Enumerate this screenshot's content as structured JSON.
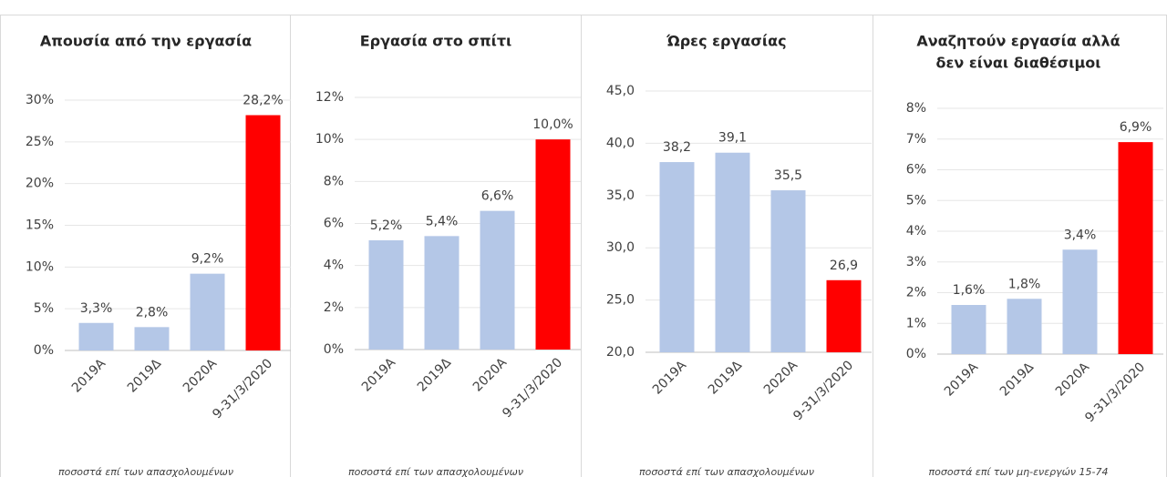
{
  "chart_data": [
    {
      "type": "bar",
      "title": [
        "Απουσία από την εργασία"
      ],
      "categories": [
        "2019Α",
        "2019Δ",
        "2020Α",
        "9-31/3/2020"
      ],
      "values": [
        3.3,
        2.8,
        9.2,
        28.2
      ],
      "value_labels": [
        "3,3%",
        "2,8%",
        "9,2%",
        "28,2%"
      ],
      "colors": [
        "#b4c7e7",
        "#b4c7e7",
        "#b4c7e7",
        "#ff0000"
      ],
      "ylim": [
        0,
        30
      ],
      "yticks": [
        {
          "value": 0,
          "label": "0%"
        },
        {
          "value": 5,
          "label": "5%"
        },
        {
          "value": 10,
          "label": "10%"
        },
        {
          "value": 15,
          "label": "15%"
        },
        {
          "value": 20,
          "label": "20%"
        },
        {
          "value": 25,
          "label": "25%"
        },
        {
          "value": 30,
          "label": "30%"
        }
      ],
      "grid": true,
      "note": "ποσοστά επί των  απασχολουμένων"
    },
    {
      "type": "bar",
      "title": [
        "Εργασία στο σπίτι"
      ],
      "categories": [
        "2019Α",
        "2019Δ",
        "2020Α",
        "9-31/3/2020"
      ],
      "values": [
        5.2,
        5.4,
        6.6,
        10.0
      ],
      "value_labels": [
        "5,2%",
        "5,4%",
        "6,6%",
        "10,0%"
      ],
      "colors": [
        "#b4c7e7",
        "#b4c7e7",
        "#b4c7e7",
        "#ff0000"
      ],
      "ylim": [
        0,
        12
      ],
      "yticks": [
        {
          "value": 0,
          "label": "0%"
        },
        {
          "value": 2,
          "label": "2%"
        },
        {
          "value": 4,
          "label": "4%"
        },
        {
          "value": 6,
          "label": "6%"
        },
        {
          "value": 8,
          "label": "8%"
        },
        {
          "value": 10,
          "label": "10%"
        },
        {
          "value": 12,
          "label": "12%"
        }
      ],
      "grid": true,
      "note": "ποσοστά επί των απασχολουμένων"
    },
    {
      "type": "bar",
      "title": [
        "Ώρες εργασίας"
      ],
      "categories": [
        "2019Α",
        "2019Δ",
        "2020Α",
        "9-31/3/2020"
      ],
      "values": [
        38.2,
        39.1,
        35.5,
        26.9
      ],
      "value_labels": [
        "38,2",
        "39,1",
        "35,5",
        "26,9"
      ],
      "colors": [
        "#b4c7e7",
        "#b4c7e7",
        "#b4c7e7",
        "#ff0000"
      ],
      "ylim": [
        20,
        45
      ],
      "yticks": [
        {
          "value": 20,
          "label": "20,0"
        },
        {
          "value": 25,
          "label": "25,0"
        },
        {
          "value": 30,
          "label": "30,0"
        },
        {
          "value": 35,
          "label": "35,0"
        },
        {
          "value": 40,
          "label": "40,0"
        },
        {
          "value": 45,
          "label": "45,0"
        }
      ],
      "grid": true,
      "note": "ποσοστά επί των απασχολουμένων"
    },
    {
      "type": "bar",
      "title": [
        "Αναζητούν εργασία αλλά",
        "δεν είναι διαθέσιμοι"
      ],
      "categories": [
        "2019Α",
        "2019Δ",
        "2020Α",
        "9-31/3/2020"
      ],
      "values": [
        1.6,
        1.8,
        3.4,
        6.9
      ],
      "value_labels": [
        "1,6%",
        "1,8%",
        "3,4%",
        "6,9%"
      ],
      "colors": [
        "#b4c7e7",
        "#b4c7e7",
        "#b4c7e7",
        "#ff0000"
      ],
      "ylim": [
        0,
        8
      ],
      "yticks": [
        {
          "value": 0,
          "label": "0%"
        },
        {
          "value": 1,
          "label": "1%"
        },
        {
          "value": 2,
          "label": "2%"
        },
        {
          "value": 3,
          "label": "3%"
        },
        {
          "value": 4,
          "label": "4%"
        },
        {
          "value": 5,
          "label": "5%"
        },
        {
          "value": 6,
          "label": "6%"
        },
        {
          "value": 7,
          "label": "7%"
        },
        {
          "value": 8,
          "label": "8%"
        }
      ],
      "grid": true,
      "note": "ποσοστά επί των μη-ενεργών 15-74"
    }
  ]
}
